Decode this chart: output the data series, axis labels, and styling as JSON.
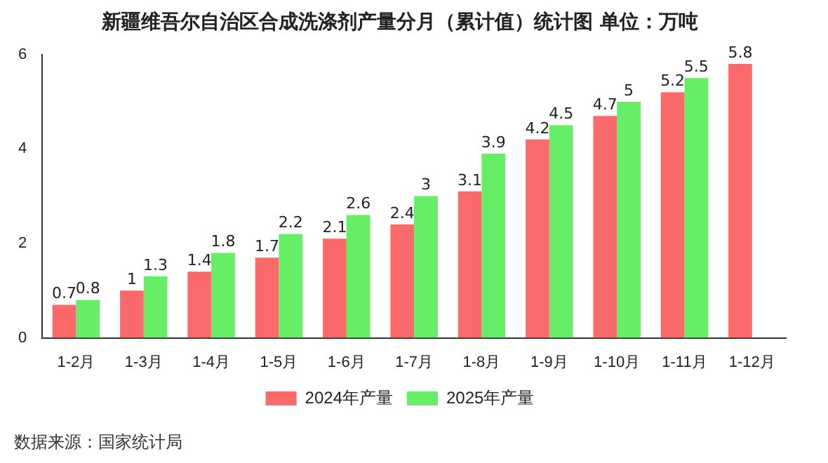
{
  "chart_data": {
    "type": "bar",
    "title": "新疆维吾尔自治区合成洗涤剂产量分月（累计值）统计图 单位：万吨",
    "categories": [
      "1-2月",
      "1-3月",
      "1-4月",
      "1-5月",
      "1-6月",
      "1-7月",
      "1-8月",
      "1-9月",
      "1-10月",
      "1-11月",
      "1-12月"
    ],
    "series": [
      {
        "name": "2024年产量",
        "color": "#fa6a6a",
        "values": [
          0.7,
          1,
          1.4,
          1.7,
          2.1,
          2.4,
          3.1,
          4.2,
          4.7,
          5.2,
          5.8
        ]
      },
      {
        "name": "2025年产量",
        "color": "#66ee66",
        "values": [
          0.8,
          1.3,
          1.8,
          2.2,
          2.6,
          3,
          3.9,
          4.5,
          5,
          5.5,
          null
        ]
      }
    ],
    "ylim": [
      0,
      6
    ],
    "yticks": [
      0,
      2,
      4,
      6
    ],
    "grid": false,
    "legend": "bottom",
    "data_labels": true,
    "annotations": [
      "数据来源：国家统计局"
    ]
  }
}
